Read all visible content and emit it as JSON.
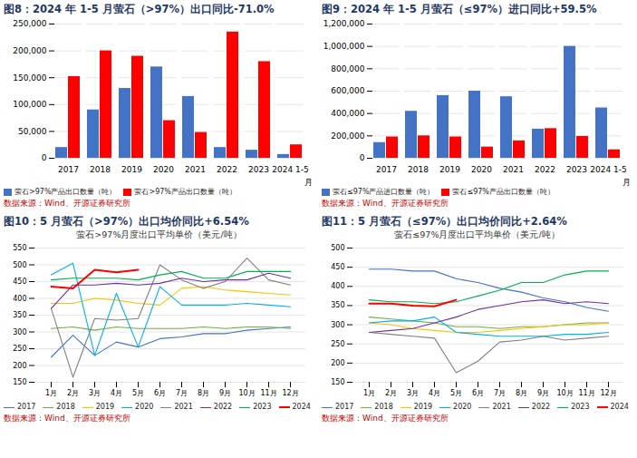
{
  "chart_data": [
    {
      "type": "bar",
      "title": "图8：2024 年 1-5 月萤石（>97%）出口同比-71.0%",
      "categories": [
        "2017",
        "2018",
        "2019",
        "2020",
        "2021",
        "2022",
        "2023",
        "2024 1-5"
      ],
      "series": [
        {
          "name": "萤石>97%产品出口数量（吨）",
          "color": "#4472C4",
          "values": [
            20000,
            90000,
            130000,
            170000,
            115000,
            20000,
            15000,
            7000
          ]
        },
        {
          "name": "萤石>97%产品出口数量（吨）",
          "color": "#FF0000",
          "values": [
            152000,
            200000,
            190000,
            70000,
            48000,
            235000,
            180000,
            25000
          ]
        }
      ],
      "xlabel": "月",
      "ylim": [
        0,
        250000
      ],
      "yticks": [
        0,
        {
          "value": 50000,
          "label": "50,000"
        },
        {
          "value": 100000,
          "label": "100,000"
        },
        {
          "value": 150000,
          "label": "150,000"
        },
        {
          "value": 200000,
          "label": "200,000"
        },
        {
          "value": 250000,
          "label": "250,000"
        }
      ],
      "grid": true,
      "legend": "bottom",
      "annotations": [
        "数据来源：Wind、开源证券研究所"
      ]
    },
    {
      "type": "bar",
      "title": "图9：2024 年 1-5 月萤石（≤97%）进口同比+59.5%",
      "categories": [
        "2017",
        "2018",
        "2019",
        "2020",
        "2021",
        "2022",
        "2023",
        "2024 1-5"
      ],
      "series": [
        {
          "name": "萤石≤97%产品进口数量（吨）",
          "color": "#4472C4",
          "values": [
            140000,
            420000,
            560000,
            600000,
            550000,
            260000,
            1000000,
            450000
          ]
        },
        {
          "name": "萤石≤97%产品出口数量（吨）",
          "color": "#FF0000",
          "values": [
            190000,
            200000,
            190000,
            100000,
            155000,
            265000,
            195000,
            75000
          ]
        }
      ],
      "xlabel": "月",
      "ylim": [
        0,
        1200000
      ],
      "yticks": [
        0,
        {
          "value": 200000,
          "label": "200,000"
        },
        {
          "value": 400000,
          "label": "400,000"
        },
        {
          "value": 600000,
          "label": "600,000"
        },
        {
          "value": 800000,
          "label": "800,000"
        },
        {
          "value": 1000000,
          "label": "1,000,000"
        },
        {
          "value": 1200000,
          "label": "1,200,000"
        }
      ],
      "grid": true,
      "legend": "bottom",
      "annotations": [
        "数据来源：Wind、开源证券研究所"
      ]
    },
    {
      "type": "line",
      "title": "图10：5 月萤石（>97%）出口均价同比+6.54%",
      "subtitle": "萤石>97%月度出口平均单价（美元/吨）",
      "categories": [
        "1月",
        "2月",
        "3月",
        "4月",
        "5月",
        "6月",
        "7月",
        "8月",
        "9月",
        "10月",
        "11月",
        "12月"
      ],
      "series": [
        {
          "name": "2017",
          "color": "#4472C4",
          "values": [
            225,
            290,
            230,
            270,
            255,
            280,
            285,
            295,
            295,
            305,
            310,
            315
          ]
        },
        {
          "name": "2018",
          "color": "#70AD47",
          "values": [
            310,
            315,
            305,
            315,
            310,
            310,
            310,
            315,
            310,
            315,
            315,
            310
          ]
        },
        {
          "name": "2019",
          "color": "#FFC000",
          "values": [
            385,
            385,
            400,
            395,
            385,
            380,
            430,
            435,
            425,
            420,
            415,
            410
          ]
        },
        {
          "name": "2020",
          "color": "#00B0F0",
          "values": [
            470,
            505,
            230,
            415,
            255,
            435,
            380,
            380,
            380,
            385,
            380,
            375
          ]
        },
        {
          "name": "2021",
          "color": "#808080",
          "values": [
            370,
            165,
            340,
            335,
            340,
            500,
            455,
            430,
            450,
            520,
            455,
            440
          ]
        },
        {
          "name": "2022",
          "color": "#7030A0",
          "values": [
            370,
            440,
            440,
            445,
            440,
            445,
            460,
            450,
            455,
            455,
            475,
            460
          ]
        },
        {
          "name": "2023",
          "color": "#00B050",
          "values": [
            455,
            460,
            460,
            460,
            455,
            470,
            480,
            460,
            460,
            480,
            480,
            480
          ]
        },
        {
          "name": "2024",
          "color": "#FF0000",
          "values": [
            435,
            430,
            485,
            478,
            485,
            null,
            null,
            null,
            null,
            null,
            null,
            null
          ]
        }
      ],
      "ylim": [
        150,
        550
      ],
      "yticks": [
        150,
        200,
        250,
        300,
        350,
        400,
        450,
        500,
        550
      ],
      "grid": true,
      "legend": "bottom",
      "annotations": [
        "数据来源：Wind、开源证券研究所"
      ]
    },
    {
      "type": "line",
      "title": "图11：5 月萤石（≤97%）出口均价同比+2.64%",
      "subtitle": "萤石≤97%月度出口平均单价（美元/吨）",
      "categories": [
        "1月",
        "2月",
        "3月",
        "4月",
        "5月",
        "6月",
        "7月",
        "8月",
        "9月",
        "10月",
        "11月",
        "12月"
      ],
      "series": [
        {
          "name": "2017",
          "color": "#4472C4",
          "values": [
            445,
            445,
            440,
            440,
            420,
            410,
            395,
            385,
            370,
            360,
            345,
            335
          ]
        },
        {
          "name": "2018",
          "color": "#70AD47",
          "values": [
            320,
            315,
            310,
            305,
            295,
            295,
            290,
            295,
            295,
            300,
            305,
            305
          ]
        },
        {
          "name": "2019",
          "color": "#FFC000",
          "values": [
            305,
            300,
            290,
            285,
            280,
            280,
            285,
            290,
            295,
            300,
            300,
            305
          ]
        },
        {
          "name": "2020",
          "color": "#00B0F0",
          "values": [
            305,
            310,
            310,
            320,
            280,
            275,
            270,
            270,
            270,
            275,
            275,
            280
          ]
        },
        {
          "name": "2021",
          "color": "#808080",
          "values": [
            280,
            275,
            270,
            265,
            175,
            205,
            255,
            260,
            270,
            260,
            265,
            270
          ]
        },
        {
          "name": "2022",
          "color": "#7030A0",
          "values": [
            280,
            285,
            290,
            305,
            320,
            340,
            350,
            360,
            365,
            355,
            360,
            355
          ]
        },
        {
          "name": "2023",
          "color": "#00B050",
          "values": [
            365,
            360,
            360,
            355,
            360,
            375,
            390,
            410,
            410,
            430,
            440,
            440
          ]
        },
        {
          "name": "2024",
          "color": "#FF0000",
          "values": [
            355,
            355,
            350,
            348,
            365,
            null,
            null,
            null,
            null,
            null,
            null,
            null
          ]
        }
      ],
      "ylim": [
        150,
        500
      ],
      "yticks": [
        150,
        200,
        250,
        300,
        350,
        400,
        450,
        500
      ],
      "grid": true,
      "legend": "bottom",
      "annotations": [
        "数据来源：Wind、开源证券研究所"
      ]
    }
  ]
}
